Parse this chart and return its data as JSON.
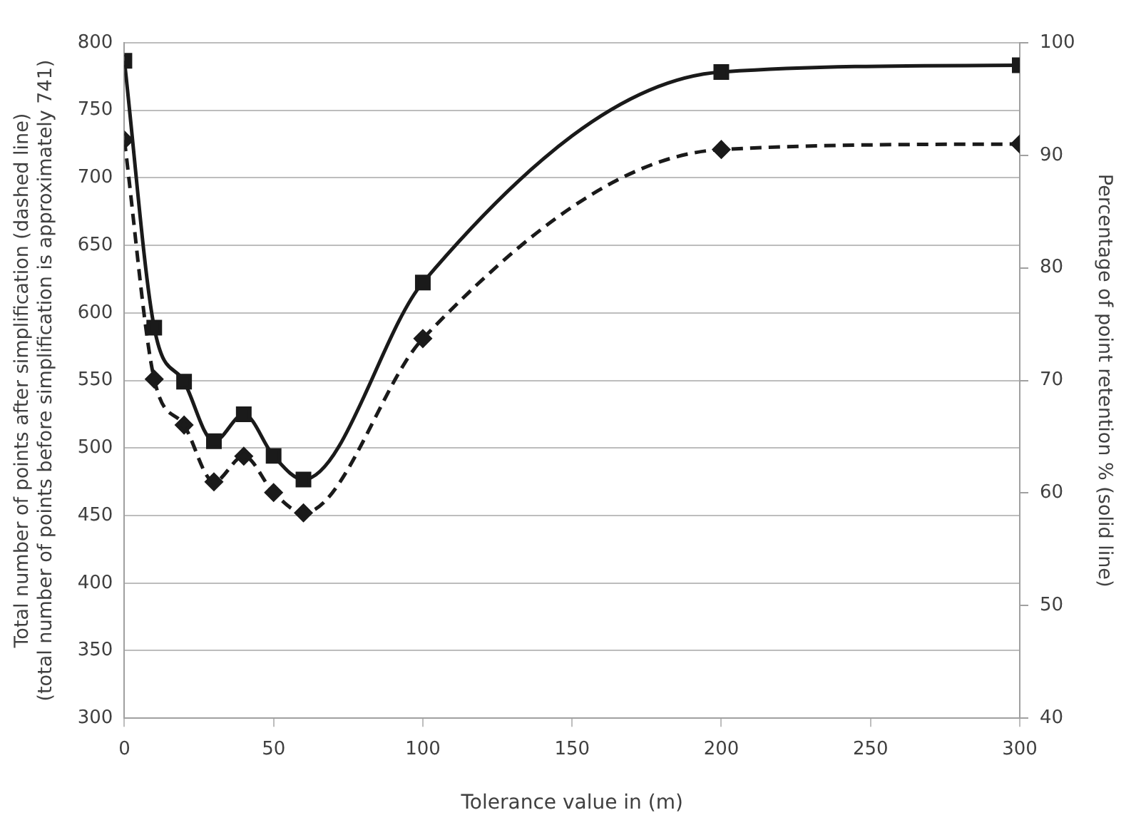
{
  "chart_data": {
    "type": "line",
    "xlabel": "Tolerance value in (m)",
    "ylabel": "Total number of points after simplification (dashed line)\n(total number of points before simplification is approximately 741)",
    "y2label": "Percentage of point retention % (solid line)",
    "x": [
      0,
      10,
      20,
      30,
      40,
      50,
      60,
      100,
      200,
      300
    ],
    "xlim": [
      0,
      300
    ],
    "xticks": [
      0,
      50,
      100,
      150,
      200,
      250,
      300
    ],
    "ylim": [
      300,
      800
    ],
    "yticks": [
      300,
      350,
      400,
      450,
      500,
      550,
      600,
      650,
      700,
      750,
      800
    ],
    "y2lim": [
      40,
      100
    ],
    "y2ticks": [
      40,
      50,
      60,
      70,
      80,
      90,
      100
    ],
    "grid": "y",
    "legend": false,
    "series": [
      {
        "color": "#1a1a1a",
        "axis": "y2",
        "marker": "square",
        "line_style": "solid",
        "values": [
          98.4,
          74.7,
          69.9,
          64.6,
          67.0,
          63.3,
          61.2,
          78.7,
          97.4,
          98.0
        ]
      },
      {
        "color": "#1a1a1a",
        "axis": "y",
        "marker": "diamond",
        "line_style": "dashed",
        "values": [
          728,
          551,
          517,
          475,
          494,
          467,
          452,
          581,
          721,
          725
        ]
      }
    ]
  }
}
